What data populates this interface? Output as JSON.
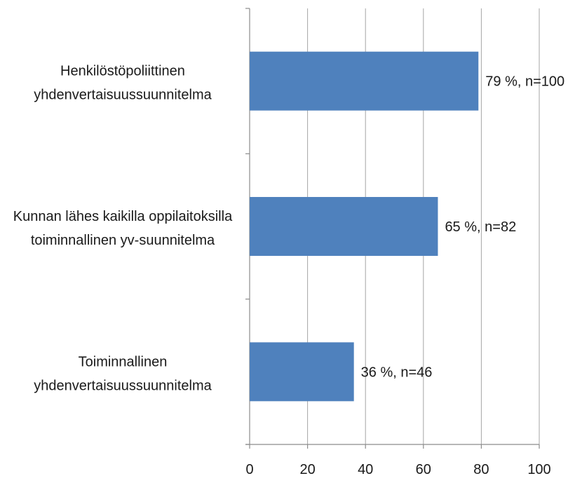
{
  "chart_data": {
    "type": "bar",
    "orientation": "horizontal",
    "categories": [
      [
        "Henkilöstöpoliittinen",
        "yhdenvertaisuussuunnitelma"
      ],
      [
        "Kunnan lähes kaikilla oppilaitoksilla",
        "toiminnallinen yv-suunnitelma"
      ],
      [
        "Toiminnallinen",
        "yhdenvertaisuussuunnitelma"
      ]
    ],
    "values": [
      79,
      65,
      36
    ],
    "data_labels": [
      "79 %, n=100",
      "65 %, n=82",
      "36 %, n=46"
    ],
    "xlim": [
      0,
      100
    ],
    "x_ticks": [
      0,
      20,
      40,
      60,
      80,
      100
    ],
    "x_tick_labels": [
      "0",
      "20",
      "40",
      "60",
      "80",
      "100"
    ],
    "grid": true,
    "legend": "none",
    "colors": {
      "bar": "#4f81bd",
      "grid": "#a6a6a6",
      "axis": "#8c8c8c"
    }
  }
}
